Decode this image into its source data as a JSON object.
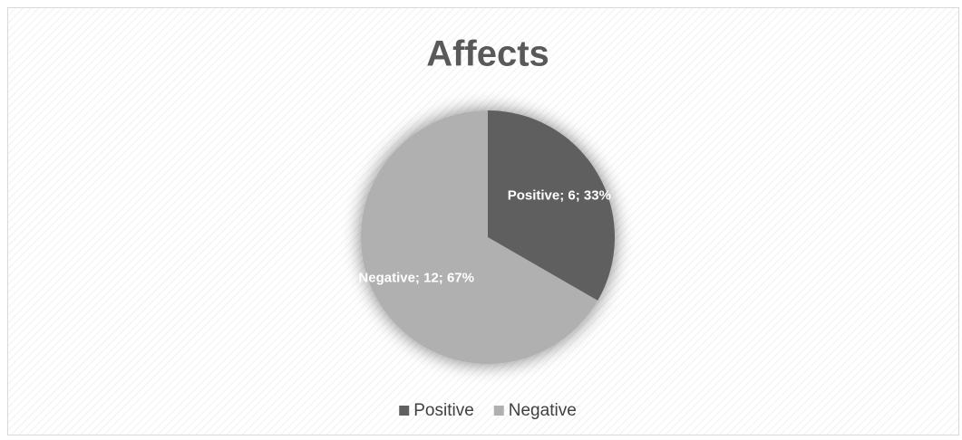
{
  "chart_data": {
    "type": "pie",
    "title": "Affects",
    "categories": [
      "Positive",
      "Negative"
    ],
    "values": [
      6,
      12
    ],
    "value_labels": [
      "Positive; 6; 33%",
      "Negative; 12; 67%"
    ],
    "colors": [
      "#5f5f5f",
      "#b0b0b0"
    ],
    "legend": "bottom"
  }
}
